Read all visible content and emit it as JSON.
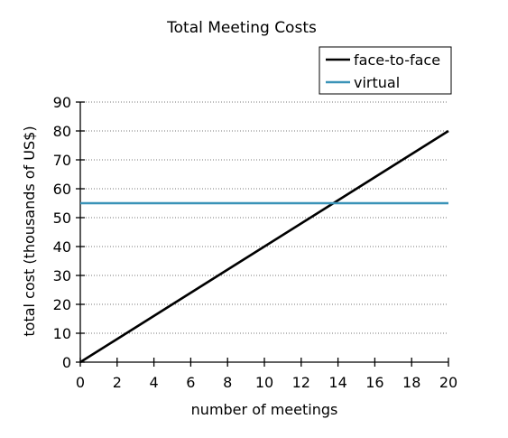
{
  "chart_data": {
    "type": "line",
    "title": "Total Meeting Costs",
    "xlabel": "number of meetings",
    "ylabel": "total cost (thousands of US$)",
    "xlim": [
      0,
      20
    ],
    "ylim": [
      0,
      90
    ],
    "xticks": [
      0,
      2,
      4,
      6,
      8,
      10,
      12,
      14,
      16,
      18,
      20
    ],
    "yticks": [
      0,
      10,
      20,
      30,
      40,
      50,
      60,
      70,
      80,
      90
    ],
    "grid": "horizontal-dotted",
    "legend_position": "top-right",
    "series": [
      {
        "name": "face-to-face",
        "color": "#000000",
        "x": [
          0,
          20
        ],
        "y": [
          0,
          80
        ]
      },
      {
        "name": "virtual",
        "color": "#3a93b8",
        "x": [
          0,
          20
        ],
        "y": [
          55,
          55
        ]
      }
    ]
  }
}
